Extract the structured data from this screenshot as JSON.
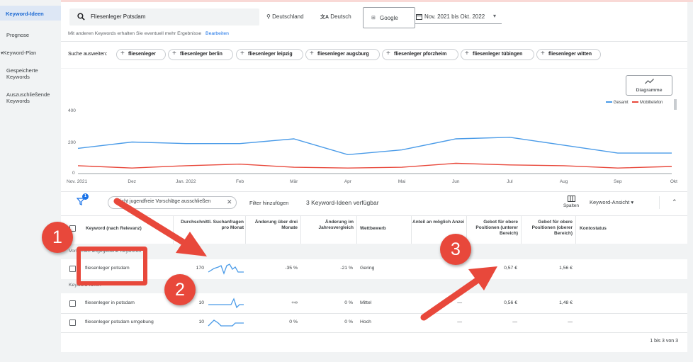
{
  "colors": {
    "accent": "#1a73e8",
    "series_total": "#4a9be8",
    "series_mobile": "#e8483b",
    "annotation": "#e8483b"
  },
  "sidebar": {
    "items": [
      {
        "label": "Keyword-Ideen",
        "active": true
      },
      {
        "label": "Prognose"
      },
      {
        "label": "Keyword-Plan",
        "icon": "caret-down-icon"
      },
      {
        "label": "Gespeicherte Keywords"
      },
      {
        "label": "Auszuschließende Keywords"
      }
    ]
  },
  "search": {
    "value": "Fliesenleger Potsdam",
    "location": "Deutschland",
    "language": "Deutsch",
    "network": "Google",
    "date_range": "Nov. 2021 bis Okt. 2022",
    "hint": "Mit anderen Keywords erhalten Sie eventuell mehr Ergebnisse",
    "edit_link": "Bearbeiten"
  },
  "broaden": {
    "label": "Suche ausweiten:",
    "chips": [
      "fliesenleger",
      "fliesenleger berlin",
      "fliesenleger leipzig",
      "fliesenleger augsburg",
      "fliesenleger pforzheim",
      "fliesenleger tübingen",
      "fliesenleger witten"
    ]
  },
  "chart_toggle": {
    "label": "Diagramme"
  },
  "chart_data": {
    "type": "line",
    "x": [
      "Nov. 2021",
      "Dez",
      "Jan. 2022",
      "Feb",
      "Mär",
      "Apr",
      "Mai",
      "Jun",
      "Jul",
      "Aug",
      "Sep",
      "Okt"
    ],
    "series": [
      {
        "name": "Gesamt",
        "values": [
          160,
          200,
          190,
          190,
          220,
          120,
          150,
          220,
          230,
          180,
          130,
          130
        ]
      },
      {
        "name": "Mobiltelefon",
        "values": [
          50,
          35,
          50,
          60,
          40,
          35,
          40,
          65,
          55,
          50,
          35,
          45
        ]
      }
    ],
    "ylim": [
      0,
      400
    ],
    "yticks": [
      "400",
      "200",
      "0"
    ],
    "legend": "top-right"
  },
  "filters": {
    "badge": "1",
    "chip_label": "Nicht jugendfreie Vorschläge ausschließen",
    "add": "Filter hinzufügen",
    "count": "3 Keyword-Ideen verfügbar",
    "columns_label": "Spalten",
    "view_label": "Keyword-Ansicht"
  },
  "table": {
    "headers": {
      "keyword": "Keyword (nach Relevanz)",
      "avg": "Durchschnittl. Suchanfragen pro Monat",
      "change3": "Änderung über drei Monate",
      "yoy": "Änderung im Jahresvergleich",
      "competition": "Wettbewerb",
      "impression_share": "Anteil an möglich Anzeigenimpre",
      "bid_low": "Gebot für obere Positionen (unterer Bereich)",
      "bid_high": "Gebot für obere Positionen (oberer Bereich)",
      "status": "Kontostatus"
    },
    "group1": "Von Ihnen angegebene Keywords",
    "group2": "Keyword-Ideen",
    "rows": [
      {
        "keyword": "fliesenleger potsdam",
        "avg": "170",
        "change3": "-35 %",
        "yoy": "-21 %",
        "competition": "Gering",
        "share": "",
        "bid_low": "0,57 €",
        "bid_high": "1,56 €"
      },
      {
        "keyword": "fliesenleger in potsdam",
        "avg": "10",
        "change3": "+∞",
        "yoy": "0 %",
        "competition": "Mittel",
        "share": "—",
        "bid_low": "0,56 €",
        "bid_high": "1,48 €"
      },
      {
        "keyword": "fliesenleger potsdam umgebung",
        "avg": "10",
        "change3": "0 %",
        "yoy": "0 %",
        "competition": "Hoch",
        "share": "—",
        "bid_low": "—",
        "bid_high": "—"
      }
    ],
    "pagination": "1 bis 3 von 3"
  },
  "annotations": [
    "1",
    "2",
    "3"
  ]
}
